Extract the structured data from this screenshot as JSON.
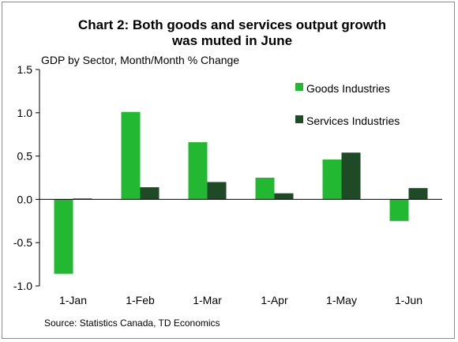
{
  "chart_data": {
    "type": "bar",
    "title_lines": [
      "Chart 2: Both goods and services output growth",
      "was muted in June"
    ],
    "subtitle": "GDP by Sector, Month/Month % Change",
    "source": "Source: Statistics Canada, TD Economics",
    "categories": [
      "1-Jan",
      "1-Feb",
      "1-Mar",
      "1-Apr",
      "1-May",
      "1-Jun"
    ],
    "series": [
      {
        "name": "Goods Industries",
        "color": "#22b831",
        "values": [
          -0.86,
          1.01,
          0.66,
          0.25,
          0.46,
          -0.25
        ]
      },
      {
        "name": "Services Industries",
        "color": "#1e4a26",
        "values": [
          0.01,
          0.14,
          0.2,
          0.07,
          0.54,
          0.13
        ]
      }
    ],
    "ylim": [
      -1.0,
      1.5
    ],
    "yticks": [
      "1.5",
      "1.0",
      "0.5",
      "0.0",
      "-0.5",
      "-1.0"
    ],
    "ytick_values": [
      1.5,
      1.0,
      0.5,
      0.0,
      -0.5,
      -1.0
    ],
    "grid": false,
    "legend_position": "top-right"
  }
}
